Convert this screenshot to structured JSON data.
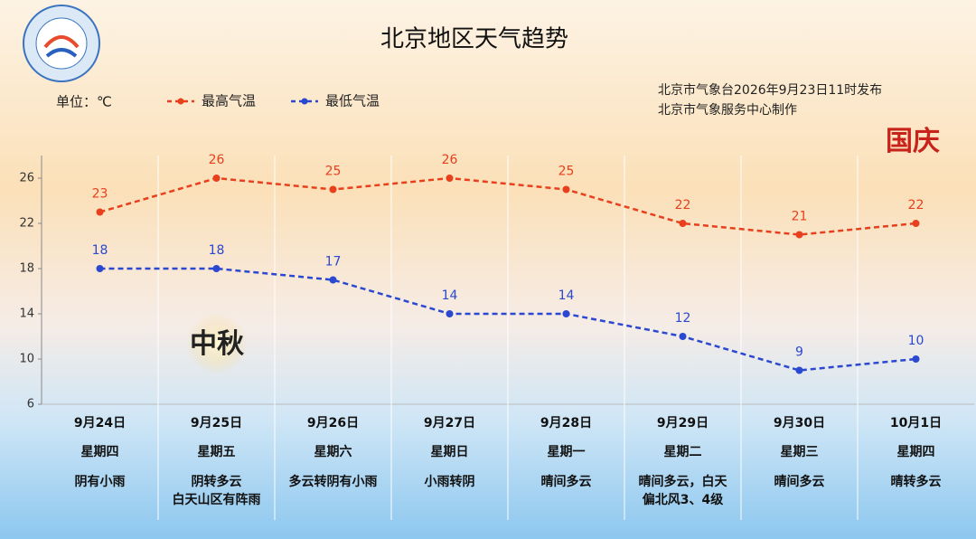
{
  "chart_data": {
    "type": "line",
    "title": "北京地区天气趋势",
    "y_label": "单位：℃",
    "source": [
      "北京市气象台2026年9月23日11时发布",
      "北京市气象服务中心制作"
    ],
    "annotations": [
      "国庆",
      "中秋"
    ],
    "categories": [
      "9月24日",
      "9月25日",
      "9月26日",
      "9月27日",
      "9月28日",
      "9月29日",
      "9月30日",
      "10月1日"
    ],
    "weekdays": [
      "星期四",
      "星期五",
      "星期六",
      "星期日",
      "星期一",
      "星期二",
      "星期三",
      "星期四"
    ],
    "weather": [
      [
        "阴有小雨"
      ],
      [
        "阴转多云",
        "白天山区有阵雨"
      ],
      [
        "多云转阴有小雨"
      ],
      [
        "小雨转阴"
      ],
      [
        "晴间多云"
      ],
      [
        "晴间多云，白天",
        "偏北风3、4级"
      ],
      [
        "晴间多云"
      ],
      [
        "晴转多云"
      ]
    ],
    "series": [
      {
        "name": "最高气温",
        "color": "#e8401c",
        "values": [
          23,
          26,
          25,
          26,
          25,
          22,
          21,
          22
        ]
      },
      {
        "name": "最低气温",
        "color": "#2a48d0",
        "values": [
          18,
          18,
          17,
          14,
          14,
          12,
          9,
          10
        ]
      }
    ],
    "ylim": [
      6,
      28
    ],
    "yticks": [
      6,
      10,
      14,
      18,
      22,
      26
    ],
    "grid": true
  }
}
